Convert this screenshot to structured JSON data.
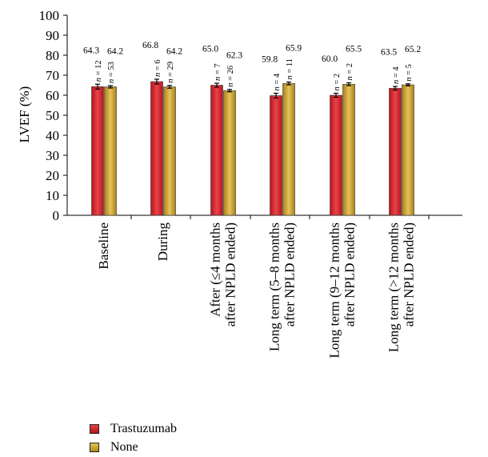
{
  "chart_data": {
    "type": "bar",
    "ylabel": "LVEF (%)",
    "ylim": [
      0,
      100
    ],
    "yticks": [
      "0",
      "10",
      "20",
      "30",
      "40",
      "50",
      "60",
      "70",
      "80",
      "90",
      "100"
    ],
    "categories": [
      [
        "Baseline"
      ],
      [
        "During"
      ],
      [
        "After (≤4 months",
        "after NPLD ended)"
      ],
      [
        "Long term (5–8 months",
        "after NPLD ended)"
      ],
      [
        "Long term (9–12 months",
        "after NPLD ended)"
      ],
      [
        "Long term (>12 months",
        "after NPLD ended)"
      ]
    ],
    "series": [
      {
        "name": "Trastuzumab",
        "color": "#d0262e",
        "values": [
          64.3,
          66.8,
          65.0,
          59.8,
          60.0,
          63.5
        ],
        "value_labels": [
          "64.3",
          "66.8",
          "65.0",
          "59.8",
          "60.0",
          "63.5"
        ],
        "n_labels": [
          "n = 12",
          "n = 6",
          "n = 7",
          "n = 4",
          "n = 2",
          "n = 4"
        ],
        "error": [
          1.2,
          1.2,
          1.0,
          1.2,
          1.0,
          0.9
        ]
      },
      {
        "name": "None",
        "color": "#cfa332",
        "values": [
          64.2,
          64.2,
          62.3,
          65.9,
          65.5,
          65.2
        ],
        "value_labels": [
          "64.2",
          "64.2",
          "62.3",
          "65.9",
          "65.5",
          "65.2"
        ],
        "n_labels": [
          "n = 53",
          "n = 29",
          "n = 26",
          "n = 11",
          "n = 2",
          "n = 5"
        ],
        "error": [
          0.6,
          0.7,
          0.6,
          0.7,
          0.7,
          0.5
        ]
      }
    ],
    "legend_position": "bottom-left"
  }
}
